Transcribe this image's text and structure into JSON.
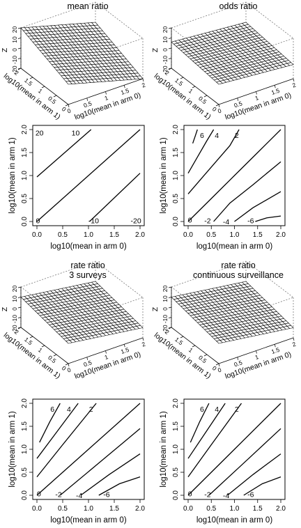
{
  "chart_data": [
    {
      "type": "surface",
      "title": "mean ratio",
      "zlabel": "Z",
      "xlabel": "log10(mean in arm 0)",
      "ylabel": "log10(mean in arm 1)",
      "x_ticks": [
        "0",
        "0.5",
        "1",
        "1.5",
        "2"
      ],
      "y_ticks": [
        "0",
        "0.5",
        "1",
        "1.5",
        "2"
      ],
      "z_ticks": [
        "-20",
        "-10",
        "0",
        "10",
        "20"
      ],
      "zlim": [
        -20,
        20
      ],
      "surface": "z = 10*(y - x)",
      "grid_cells": 20
    },
    {
      "type": "surface",
      "title": "odds ratio",
      "zlabel": "Z",
      "xlabel": "log10(mean in arm 0)",
      "ylabel": "log10(mean in arm 1)",
      "x_ticks": [
        "0",
        "0.5",
        "1",
        "1.5",
        "2"
      ],
      "y_ticks": [
        "0",
        "0.5",
        "1",
        "1.5",
        "2"
      ],
      "z_ticks": [
        "-20",
        "-10",
        "0",
        "10",
        "20"
      ],
      "zlim": [
        -20,
        20
      ],
      "surface": "z = 3*(y - x)",
      "grid_cells": 20
    },
    {
      "type": "contour",
      "xlabel": "log10(mean in arm 0)",
      "ylabel": "log10(mean in arm 1)",
      "x_ticks": [
        "0.0",
        "0.5",
        "1.0",
        "1.5",
        "2.0"
      ],
      "y_ticks": [
        "0.0",
        "0.5",
        "1.0",
        "1.5",
        "2.0"
      ],
      "xlim": [
        0,
        2
      ],
      "ylim": [
        0,
        2
      ],
      "levels": [
        {
          "label": "20",
          "z": 20
        },
        {
          "label": "10",
          "z": 10
        },
        {
          "label": "0",
          "z": 0
        },
        {
          "label": "-10",
          "z": -10
        },
        {
          "label": "-20",
          "z": -20
        }
      ],
      "lines": [
        {
          "points": [
            [
              0,
              0.97
            ],
            [
              1.05,
              2.0
            ]
          ]
        },
        {
          "points": [
            [
              0,
              0
            ],
            [
              2.0,
              2.0
            ]
          ]
        },
        {
          "points": [
            [
              1.02,
              0
            ],
            [
              2.0,
              1.05
            ]
          ]
        }
      ]
    },
    {
      "type": "contour",
      "xlabel": "log10(mean in arm 0)",
      "ylabel": "log10(mean in arm 1)",
      "x_ticks": [
        "0.0",
        "0.5",
        "1.0",
        "1.5",
        "2.0"
      ],
      "y_ticks": [
        "0.0",
        "0.5",
        "1.0",
        "1.5",
        "2.0"
      ],
      "xlim": [
        0,
        2
      ],
      "ylim": [
        0,
        2
      ],
      "levels": [
        {
          "label": "6",
          "z": 6
        },
        {
          "label": "4",
          "z": 4
        },
        {
          "label": "2",
          "z": 2
        },
        {
          "label": "0",
          "z": 0
        },
        {
          "label": "-2",
          "z": -2
        },
        {
          "label": "-4",
          "z": -4
        },
        {
          "label": "-6",
          "z": -6
        }
      ],
      "lines": [
        {
          "points": [
            [
              0.1,
              1.7
            ],
            [
              0.15,
              1.85
            ],
            [
              0.2,
              2.0
            ]
          ]
        },
        {
          "points": [
            [
              0,
              1.05
            ],
            [
              0.2,
              1.4
            ],
            [
              0.4,
              1.75
            ],
            [
              0.55,
              2.0
            ]
          ]
        },
        {
          "points": [
            [
              0,
              0.6
            ],
            [
              0.3,
              0.95
            ],
            [
              0.6,
              1.3
            ],
            [
              0.9,
              1.65
            ],
            [
              1.1,
              2.0
            ]
          ]
        },
        {
          "points": [
            [
              0,
              0
            ],
            [
              0.5,
              0.5
            ],
            [
              1.0,
              1.0
            ],
            [
              1.5,
              1.5
            ],
            [
              2.0,
              2.0
            ]
          ]
        },
        {
          "points": [
            [
              0.55,
              0.0
            ],
            [
              0.9,
              0.4
            ],
            [
              1.4,
              0.8
            ],
            [
              2.0,
              1.3
            ]
          ]
        },
        {
          "points": [
            [
              1.0,
              0.0
            ],
            [
              1.4,
              0.3
            ],
            [
              2.0,
              0.65
            ]
          ]
        },
        {
          "points": [
            [
              1.45,
              0.0
            ],
            [
              1.7,
              0.08
            ],
            [
              2.0,
              0.12
            ]
          ]
        }
      ]
    },
    {
      "type": "surface",
      "title": "rate ratio\n3 surveys",
      "zlabel": "Z",
      "xlabel": "log10(mean in arm 0)",
      "ylabel": "log10(mean in arm 1)",
      "x_ticks": [
        "0",
        "0.5",
        "1",
        "1.5",
        "2"
      ],
      "y_ticks": [
        "0",
        "0.5",
        "1",
        "1.5",
        "2"
      ],
      "z_ticks": [
        "-20",
        "-10",
        "0",
        "10",
        "20"
      ],
      "zlim": [
        -20,
        20
      ],
      "surface": "z = 5*(y - x)",
      "grid_cells": 20
    },
    {
      "type": "surface",
      "title": "rate ratio\ncontinuous surveillance",
      "zlabel": "Z",
      "xlabel": "log10(mean in arm 0)",
      "ylabel": "log10(mean in arm 1)",
      "x_ticks": [
        "0",
        "0.5",
        "1",
        "1.5",
        "2"
      ],
      "y_ticks": [
        "0",
        "0.5",
        "1",
        "1.5",
        "2"
      ],
      "z_ticks": [
        "-20",
        "-10",
        "0",
        "10",
        "20"
      ],
      "zlim": [
        -20,
        20
      ],
      "surface": "z = 5*(y - x)",
      "grid_cells": 20
    },
    {
      "type": "contour",
      "xlabel": "log10(mean in arm 0)",
      "ylabel": "log10(mean in arm 1)",
      "x_ticks": [
        "0.0",
        "0.5",
        "1.0",
        "1.5",
        "2.0"
      ],
      "y_ticks": [
        "0.0",
        "0.5",
        "1.0",
        "1.5",
        "2.0"
      ],
      "xlim": [
        0,
        2
      ],
      "ylim": [
        0,
        2
      ],
      "levels": [
        {
          "label": "6",
          "z": 6
        },
        {
          "label": "4",
          "z": 4
        },
        {
          "label": "2",
          "z": 2
        },
        {
          "label": "0",
          "z": 0
        },
        {
          "label": "-2",
          "z": -2
        },
        {
          "label": "-4",
          "z": -4
        },
        {
          "label": "-6",
          "z": -6
        }
      ],
      "lines": [
        {
          "points": [
            [
              0.05,
              1.15
            ],
            [
              0.25,
              1.6
            ],
            [
              0.45,
              2.0
            ]
          ]
        },
        {
          "points": [
            [
              0,
              0.8
            ],
            [
              0.4,
              1.4
            ],
            [
              0.8,
              2.0
            ]
          ]
        },
        {
          "points": [
            [
              0,
              0.4
            ],
            [
              0.5,
              1.1
            ],
            [
              1.15,
              2.0
            ]
          ]
        },
        {
          "points": [
            [
              0,
              0
            ],
            [
              1.0,
              1.0
            ],
            [
              2.0,
              2.0
            ]
          ]
        },
        {
          "points": [
            [
              0.45,
              0.0
            ],
            [
              1.2,
              0.7
            ],
            [
              2.0,
              1.45
            ]
          ]
        },
        {
          "points": [
            [
              0.85,
              0.0
            ],
            [
              1.4,
              0.45
            ],
            [
              2.0,
              0.9
            ]
          ]
        },
        {
          "points": [
            [
              1.2,
              0.0
            ],
            [
              1.6,
              0.25
            ],
            [
              2.0,
              0.4
            ]
          ]
        }
      ]
    },
    {
      "type": "contour",
      "xlabel": "log10(mean in arm 0)",
      "ylabel": "log10(mean in arm 1)",
      "x_ticks": [
        "0.0",
        "0.5",
        "1.0",
        "1.5",
        "2.0"
      ],
      "y_ticks": [
        "0.0",
        "0.5",
        "1.0",
        "1.5",
        "2.0"
      ],
      "xlim": [
        0,
        2
      ],
      "ylim": [
        0,
        2
      ],
      "levels": [
        {
          "label": "6",
          "z": 6
        },
        {
          "label": "4",
          "z": 4
        },
        {
          "label": "2",
          "z": 2
        },
        {
          "label": "0",
          "z": 0
        },
        {
          "label": "-2",
          "z": -2
        },
        {
          "label": "-4",
          "z": -4
        },
        {
          "label": "-6",
          "z": -6
        }
      ],
      "lines": [
        {
          "points": [
            [
              0.05,
              1.15
            ],
            [
              0.25,
              1.6
            ],
            [
              0.45,
              2.0
            ]
          ]
        },
        {
          "points": [
            [
              0,
              0.8
            ],
            [
              0.4,
              1.4
            ],
            [
              0.8,
              2.0
            ]
          ]
        },
        {
          "points": [
            [
              0,
              0.4
            ],
            [
              0.5,
              1.1
            ],
            [
              1.15,
              2.0
            ]
          ]
        },
        {
          "points": [
            [
              0,
              0
            ],
            [
              1.0,
              1.0
            ],
            [
              2.0,
              2.0
            ]
          ]
        },
        {
          "points": [
            [
              0.45,
              0.0
            ],
            [
              1.2,
              0.7
            ],
            [
              2.0,
              1.45
            ]
          ]
        },
        {
          "points": [
            [
              0.85,
              0.0
            ],
            [
              1.4,
              0.45
            ],
            [
              2.0,
              0.9
            ]
          ]
        },
        {
          "points": [
            [
              1.2,
              0.0
            ],
            [
              1.6,
              0.25
            ],
            [
              2.0,
              0.4
            ]
          ]
        }
      ]
    }
  ]
}
